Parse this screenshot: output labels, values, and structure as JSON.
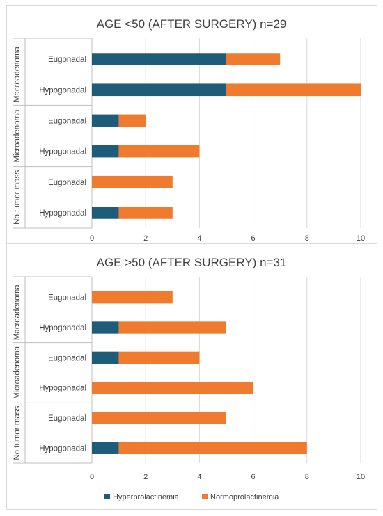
{
  "chart_data": [
    {
      "type": "bar",
      "orientation": "horizontal",
      "stacked": true,
      "title": "AGE <50 (AFTER SURGERY) n=29",
      "groups": [
        {
          "name": "Macroadenoma",
          "rows": [
            "Eugonadal",
            "Hypogonadal"
          ]
        },
        {
          "name": "Microadenoma",
          "rows": [
            "Eugonadal",
            "Hypogonadal"
          ]
        },
        {
          "name": "No tumor mass",
          "rows": [
            "Eugonadal",
            "Hypogonadal"
          ]
        }
      ],
      "categories": [
        "Macroadenoma - Eugonadal",
        "Macroadenoma - Hypogonadal",
        "Microadenoma - Eugonadal",
        "Microadenoma - Hypogonadal",
        "No tumor mass - Eugonadal",
        "No tumor mass - Hypogonadal"
      ],
      "series": [
        {
          "name": "Hyperprolactinemia",
          "color": "#1f5c7a",
          "values": [
            5,
            5,
            1,
            1,
            0,
            1
          ]
        },
        {
          "name": "Normoprolactinemia",
          "color": "#f07b2f",
          "values": [
            2,
            5,
            1,
            3,
            3,
            2
          ]
        }
      ],
      "xlim": [
        0,
        10
      ],
      "xticks": [
        "0",
        "2",
        "4",
        "6",
        "8",
        "10"
      ],
      "grid": true
    },
    {
      "type": "bar",
      "orientation": "horizontal",
      "stacked": true,
      "title": "AGE >50 (AFTER SURGERY) n=31",
      "groups": [
        {
          "name": "Macroadenoma",
          "rows": [
            "Eugonadal",
            "Hypogonadal"
          ]
        },
        {
          "name": "Microadenoma",
          "rows": [
            "Eugonadal",
            "Hypogonadal"
          ]
        },
        {
          "name": "No tumor mass",
          "rows": [
            "Eugonadal",
            "Hypogonadal"
          ]
        }
      ],
      "categories": [
        "Macroadenoma - Eugonadal",
        "Macroadenoma - Hypogonadal",
        "Microadenoma - Eugonadal",
        "Microadenoma - Hypogonadal",
        "No tumor mass - Eugonadal",
        "No tumor mass - Hypogonadal"
      ],
      "series": [
        {
          "name": "Hyperprolactinemia",
          "color": "#1f5c7a",
          "values": [
            0,
            1,
            1,
            0,
            0,
            1
          ]
        },
        {
          "name": "Normoprolactinemia",
          "color": "#f07b2f",
          "values": [
            3,
            4,
            3,
            6,
            5,
            7
          ]
        }
      ],
      "xlim": [
        0,
        10
      ],
      "xticks": [
        "0",
        "2",
        "4",
        "6",
        "8",
        "10"
      ],
      "grid": true
    }
  ],
  "legend": {
    "position": "bottom",
    "items": [
      {
        "label": "Hyperprolactinemia",
        "color": "#1f5c7a"
      },
      {
        "label": "Normoprolactinemia",
        "color": "#f07b2f"
      }
    ]
  }
}
